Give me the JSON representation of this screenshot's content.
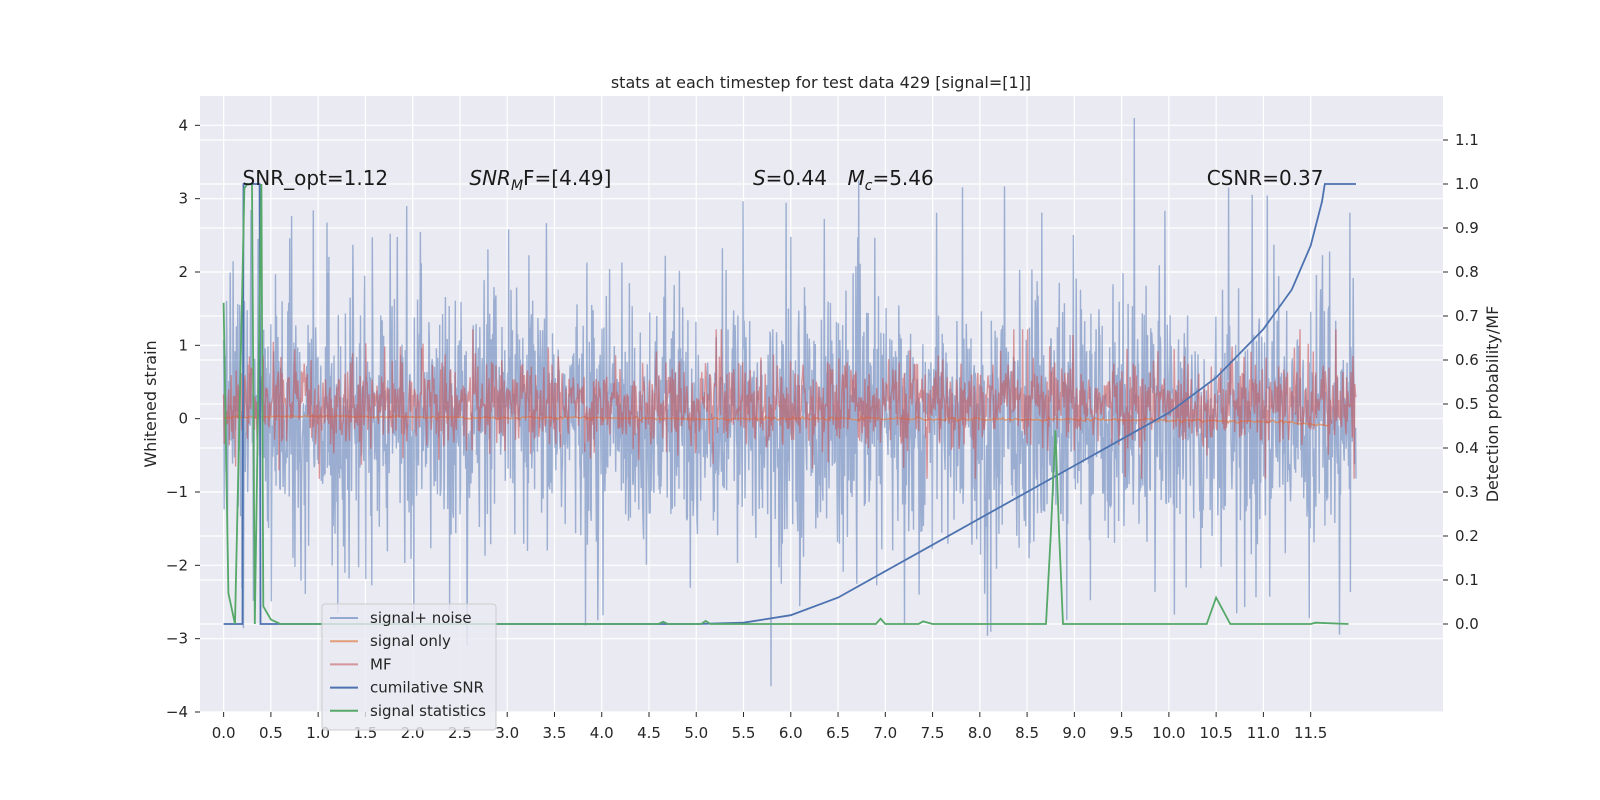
{
  "chart_data": {
    "type": "line",
    "title": "stats at each timestep for test data 429 [signal=[1]]",
    "xlabel": "",
    "ylabel": "Whitened strain",
    "ylabel_right": "Detection probability/MF",
    "xlim": [
      -0.25,
      12.9
    ],
    "ylim": [
      -4.0,
      4.4
    ],
    "ylim_right": [
      -0.2,
      1.2
    ],
    "x_ticks": [
      "0.0",
      "0.5",
      "1.0",
      "1.5",
      "2.0",
      "2.5",
      "3.0",
      "3.5",
      "4.0",
      "4.5",
      "5.0",
      "5.5",
      "6.0",
      "6.5",
      "7.0",
      "7.5",
      "8.0",
      "8.5",
      "9.0",
      "9.5",
      "10.0",
      "10.5",
      "11.0",
      "11.5"
    ],
    "y_ticks": [
      "4",
      "3",
      "2",
      "1",
      "0",
      "−1",
      "−2",
      "−3",
      "−4"
    ],
    "y_ticks_right": [
      "1.1",
      "1.0",
      "0.9",
      "0.8",
      "0.7",
      "0.6",
      "0.5",
      "0.4",
      "0.3",
      "0.2",
      "0.1",
      "0.0"
    ],
    "grid": true,
    "legend_position": "lower-left",
    "annotations": [
      {
        "prefix": "SNR_opt=1.12",
        "value": "",
        "x": 0.2
      },
      {
        "prefix": "SNR",
        "sub": "M",
        "suffix": "F=[4.49]",
        "x": 2.6
      },
      {
        "prefix": "S",
        "suffix": "=0.44",
        "x": 5.6
      },
      {
        "prefix": "M",
        "sub": "c",
        "suffix": "=5.46",
        "x": 6.6
      },
      {
        "prefix": "CSNR=0.37",
        "x": 10.4
      }
    ],
    "series": [
      {
        "name": "signal+ noise",
        "color": "#4c72b0",
        "axis": "left",
        "style": "noise",
        "x_range": [
          0.0,
          11.98
        ],
        "amplitude_typical": 1.3,
        "peak_max": 4.1,
        "peak_min": -3.65
      },
      {
        "name": "signal only",
        "color": "#dd8452",
        "axis": "left",
        "style": "signal",
        "x": [
          0.0,
          1.0,
          2.0,
          3.0,
          4.0,
          5.0,
          6.0,
          7.0,
          8.0,
          9.0,
          10.0,
          11.0,
          11.5,
          11.7
        ],
        "y": [
          0.02,
          0.03,
          0.02,
          0.01,
          0.01,
          0.0,
          0.0,
          0.0,
          -0.01,
          -0.01,
          -0.02,
          -0.04,
          -0.07,
          -0.1
        ]
      },
      {
        "name": "MF",
        "color": "#c44e52",
        "axis": "right",
        "style": "mf",
        "x_range": [
          0.0,
          11.98
        ],
        "center": 0.5,
        "spread": 0.05
      },
      {
        "name": "cumilative SNR",
        "color": "#4c72b0",
        "axis": "right",
        "x": [
          0.0,
          0.2,
          0.21,
          0.38,
          0.39,
          5.0,
          5.5,
          6.0,
          6.5,
          7.0,
          7.5,
          8.0,
          8.5,
          9.0,
          9.5,
          10.0,
          10.5,
          11.0,
          11.3,
          11.5,
          11.62,
          11.65,
          11.98
        ],
        "y": [
          0.0,
          0.0,
          1.0,
          1.0,
          0.0,
          0.0,
          0.003,
          0.02,
          0.06,
          0.12,
          0.18,
          0.24,
          0.3,
          0.36,
          0.42,
          0.48,
          0.56,
          0.67,
          0.76,
          0.86,
          0.96,
          1.0,
          1.0
        ]
      },
      {
        "name": "signal statistics",
        "color": "#55a868",
        "axis": "right",
        "x": [
          0.0,
          0.05,
          0.12,
          0.22,
          0.25,
          0.3,
          0.33,
          0.4,
          0.42,
          0.5,
          0.6,
          0.8,
          4.6,
          4.65,
          4.7,
          5.05,
          5.1,
          5.15,
          6.9,
          6.95,
          7.0,
          7.35,
          7.4,
          7.5,
          8.7,
          8.75,
          8.8,
          8.84,
          8.88,
          10.4,
          10.5,
          10.55,
          10.65,
          10.7,
          11.5,
          11.55,
          11.9
        ],
        "y": [
          0.73,
          0.07,
          -0.0,
          0.99,
          1.0,
          1.0,
          0.0,
          1.0,
          0.04,
          0.01,
          0.0,
          0.0,
          0.0,
          0.005,
          0.0,
          0.0,
          0.007,
          0.0,
          0.0,
          0.012,
          0.0,
          0.0,
          0.006,
          0.0,
          0.0,
          0.2,
          0.44,
          0.2,
          0.0,
          0.0,
          0.06,
          0.04,
          0.0,
          0.0,
          0.0,
          0.003,
          0.0
        ]
      }
    ]
  }
}
